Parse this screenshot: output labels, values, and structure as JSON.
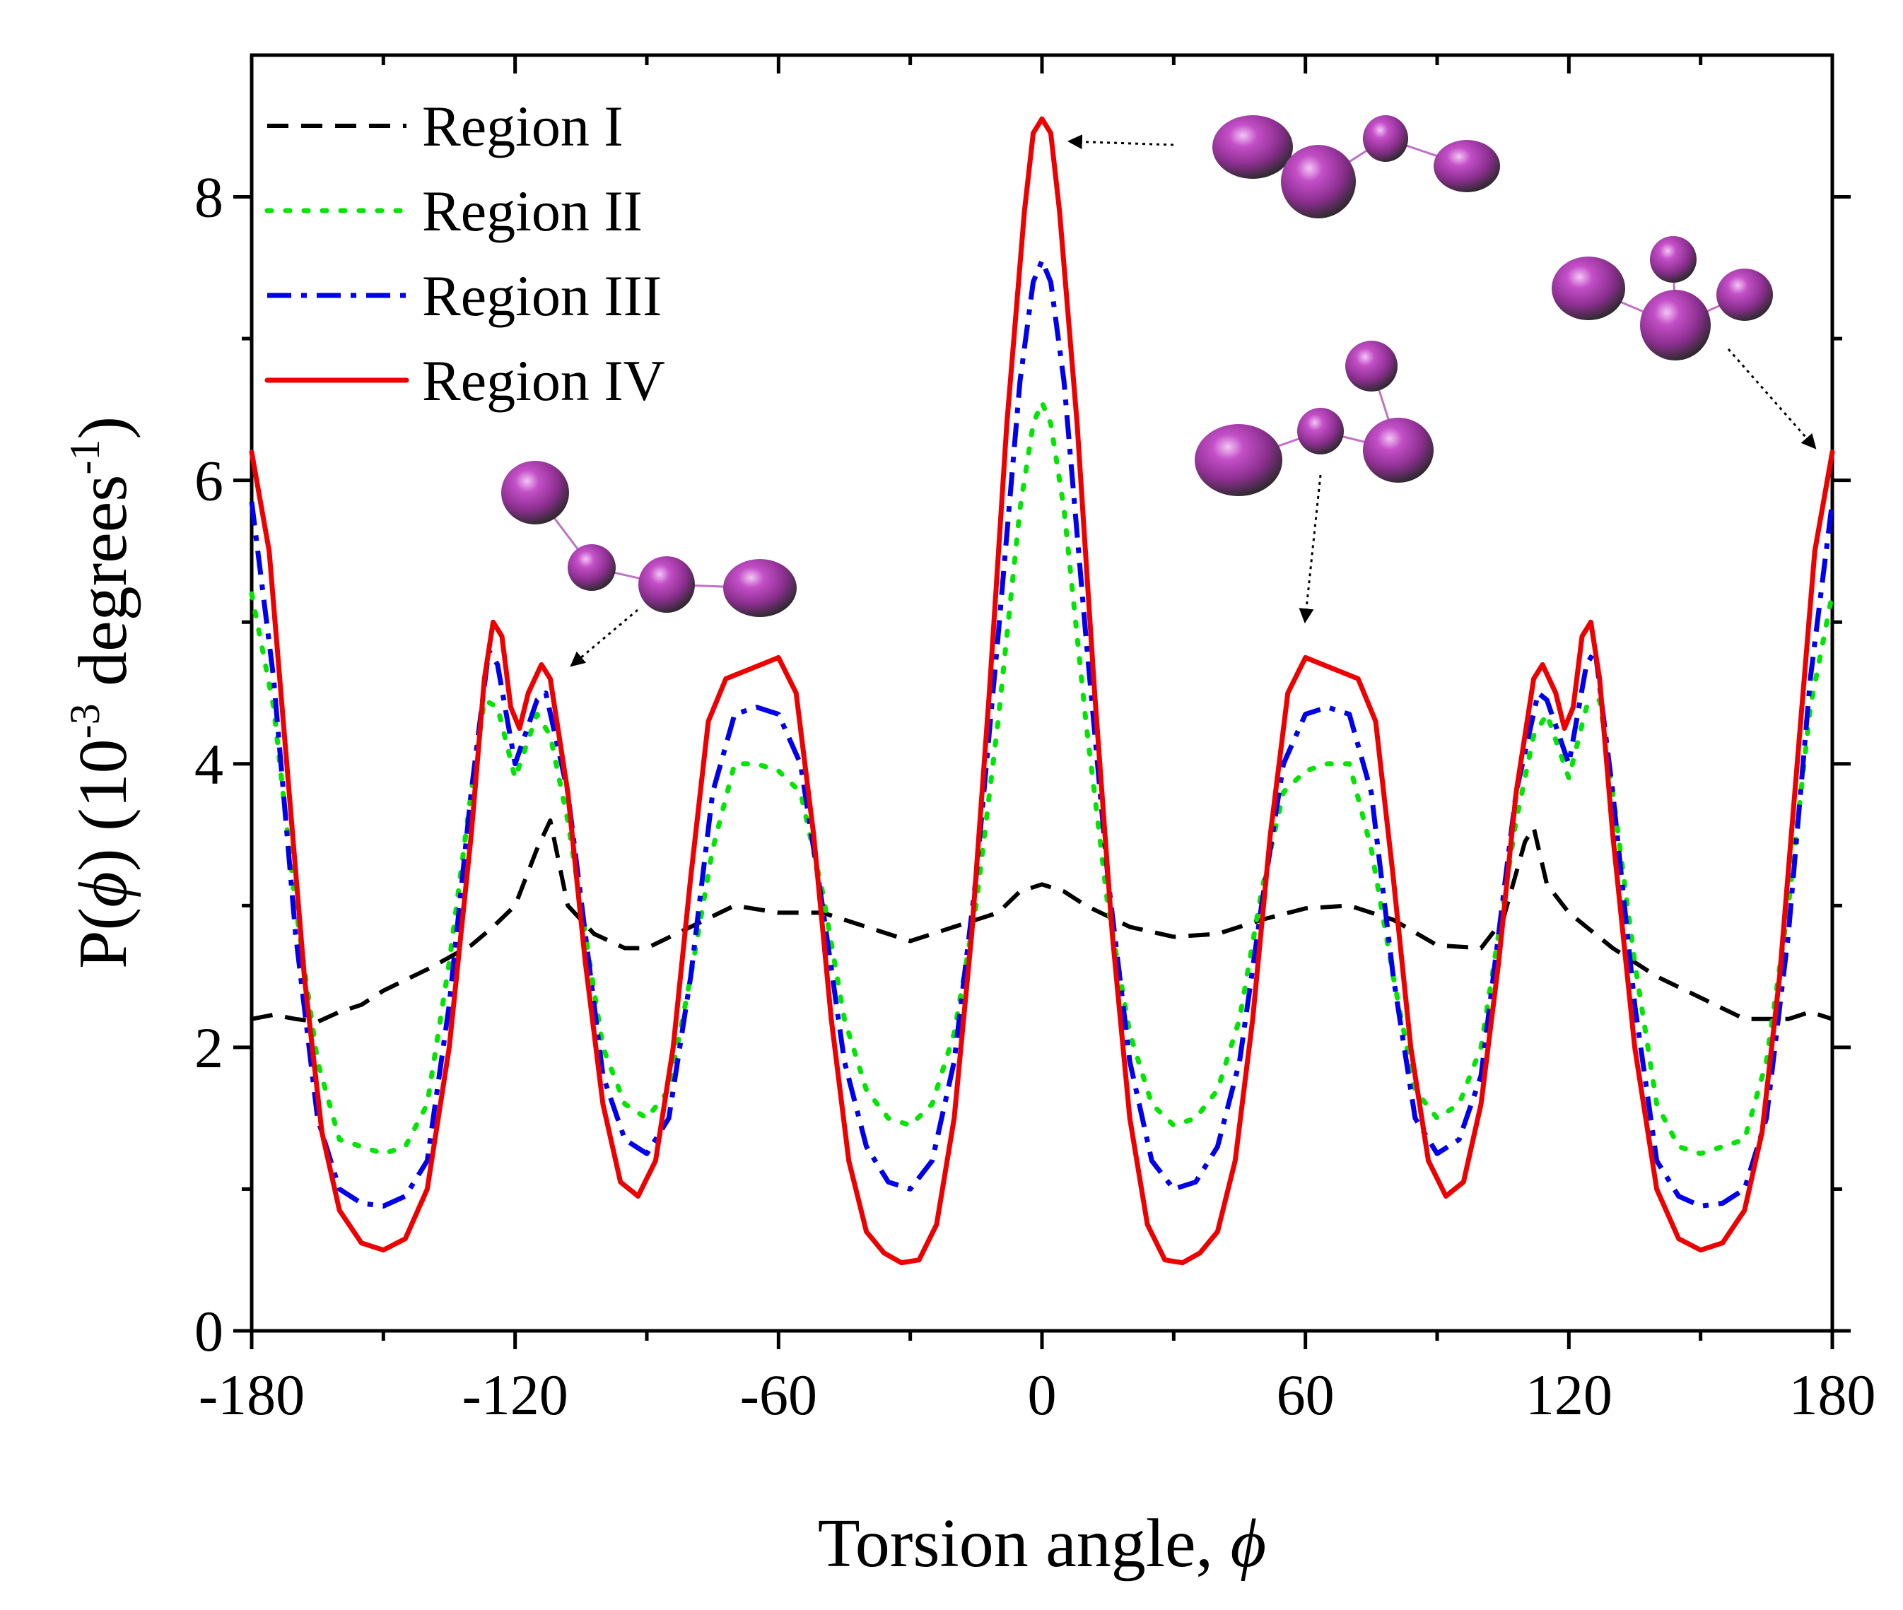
{
  "chart_data": {
    "type": "line",
    "xlabel": "Torsion angle, ",
    "xlabel_symbol": "ϕ",
    "ylabel_prefix": "P(",
    "ylabel_symbol": "ϕ",
    "ylabel_middle": ") (10",
    "ylabel_exp": "-3",
    "ylabel_units": " degrees",
    "ylabel_units_exp": "-1",
    "ylabel_close": ")",
    "xlim": [
      -180,
      180
    ],
    "ylim": [
      0,
      9
    ],
    "xticks": [
      -180,
      -120,
      -60,
      0,
      60,
      120,
      180
    ],
    "xtick_labels": [
      "-180",
      "-120",
      "-60",
      "0",
      "60",
      "120",
      "180"
    ],
    "yticks": [
      0,
      2,
      4,
      6,
      8
    ],
    "ytick_labels": [
      "0",
      "2",
      "4",
      "6",
      "8"
    ],
    "legend_position": "top-left",
    "series": [
      {
        "name": "Region I",
        "color": "#000000",
        "style": "dashed",
        "points": [
          [
            -180,
            2.2
          ],
          [
            -175,
            2.23
          ],
          [
            -170,
            2.2
          ],
          [
            -165,
            2.18
          ],
          [
            -160,
            2.25
          ],
          [
            -155,
            2.3
          ],
          [
            -150,
            2.4
          ],
          [
            -140,
            2.55
          ],
          [
            -130,
            2.72
          ],
          [
            -125,
            2.85
          ],
          [
            -120,
            3.0
          ],
          [
            -115,
            3.4
          ],
          [
            -112,
            3.6
          ],
          [
            -108,
            3.0
          ],
          [
            -102,
            2.8
          ],
          [
            -95,
            2.7
          ],
          [
            -90,
            2.7
          ],
          [
            -80,
            2.85
          ],
          [
            -70,
            3.0
          ],
          [
            -60,
            2.95
          ],
          [
            -50,
            2.95
          ],
          [
            -40,
            2.85
          ],
          [
            -30,
            2.75
          ],
          [
            -20,
            2.85
          ],
          [
            -10,
            2.95
          ],
          [
            -5,
            3.1
          ],
          [
            0,
            3.15
          ],
          [
            5,
            3.1
          ],
          [
            10,
            3.0
          ],
          [
            20,
            2.85
          ],
          [
            30,
            2.78
          ],
          [
            40,
            2.8
          ],
          [
            50,
            2.9
          ],
          [
            60,
            2.98
          ],
          [
            70,
            3.0
          ],
          [
            80,
            2.9
          ],
          [
            90,
            2.72
          ],
          [
            100,
            2.7
          ],
          [
            105,
            2.9
          ],
          [
            110,
            3.45
          ],
          [
            112,
            3.55
          ],
          [
            115,
            3.15
          ],
          [
            120,
            2.95
          ],
          [
            130,
            2.7
          ],
          [
            140,
            2.5
          ],
          [
            150,
            2.35
          ],
          [
            160,
            2.2
          ],
          [
            170,
            2.2
          ],
          [
            175,
            2.25
          ],
          [
            180,
            2.2
          ]
        ]
      },
      {
        "name": "Region II",
        "color": "#00e600",
        "style": "dotted",
        "points": [
          [
            -180,
            5.2
          ],
          [
            -175,
            4.4
          ],
          [
            -170,
            3.0
          ],
          [
            -165,
            1.9
          ],
          [
            -160,
            1.35
          ],
          [
            -150,
            1.25
          ],
          [
            -145,
            1.3
          ],
          [
            -140,
            1.6
          ],
          [
            -135,
            2.6
          ],
          [
            -130,
            3.8
          ],
          [
            -127,
            4.45
          ],
          [
            -124,
            4.4
          ],
          [
            -120,
            3.9
          ],
          [
            -115,
            4.35
          ],
          [
            -112,
            4.2
          ],
          [
            -108,
            3.6
          ],
          [
            -104,
            2.8
          ],
          [
            -100,
            2.0
          ],
          [
            -95,
            1.6
          ],
          [
            -90,
            1.5
          ],
          [
            -85,
            1.7
          ],
          [
            -80,
            2.5
          ],
          [
            -75,
            3.4
          ],
          [
            -70,
            4.0
          ],
          [
            -65,
            4.0
          ],
          [
            -60,
            3.95
          ],
          [
            -55,
            3.8
          ],
          [
            -50,
            3.1
          ],
          [
            -45,
            2.2
          ],
          [
            -40,
            1.7
          ],
          [
            -35,
            1.5
          ],
          [
            -30,
            1.45
          ],
          [
            -25,
            1.6
          ],
          [
            -20,
            2.1
          ],
          [
            -15,
            3.0
          ],
          [
            -10,
            4.3
          ],
          [
            -5,
            5.8
          ],
          [
            -2,
            6.4
          ],
          [
            0,
            6.55
          ],
          [
            2,
            6.4
          ],
          [
            5,
            5.8
          ],
          [
            10,
            4.3
          ],
          [
            15,
            3.0
          ],
          [
            20,
            2.1
          ],
          [
            25,
            1.6
          ],
          [
            30,
            1.45
          ],
          [
            35,
            1.5
          ],
          [
            40,
            1.7
          ],
          [
            45,
            2.2
          ],
          [
            50,
            3.1
          ],
          [
            55,
            3.8
          ],
          [
            60,
            3.95
          ],
          [
            65,
            4.0
          ],
          [
            70,
            4.0
          ],
          [
            75,
            3.4
          ],
          [
            80,
            2.5
          ],
          [
            85,
            1.7
          ],
          [
            90,
            1.5
          ],
          [
            95,
            1.6
          ],
          [
            100,
            2.0
          ],
          [
            104,
            2.8
          ],
          [
            108,
            3.6
          ],
          [
            112,
            4.2
          ],
          [
            115,
            4.35
          ],
          [
            120,
            3.9
          ],
          [
            124,
            4.4
          ],
          [
            127,
            4.45
          ],
          [
            130,
            3.8
          ],
          [
            135,
            2.6
          ],
          [
            140,
            1.6
          ],
          [
            145,
            1.3
          ],
          [
            150,
            1.25
          ],
          [
            160,
            1.35
          ],
          [
            165,
            1.9
          ],
          [
            170,
            3.0
          ],
          [
            175,
            4.4
          ],
          [
            180,
            5.2
          ]
        ]
      },
      {
        "name": "Region III",
        "color": "#0000ee",
        "style": "dashdot",
        "points": [
          [
            -180,
            5.85
          ],
          [
            -175,
            4.6
          ],
          [
            -170,
            2.8
          ],
          [
            -165,
            1.5
          ],
          [
            -160,
            1.0
          ],
          [
            -155,
            0.9
          ],
          [
            -150,
            0.88
          ],
          [
            -145,
            0.95
          ],
          [
            -140,
            1.2
          ],
          [
            -135,
            2.3
          ],
          [
            -130,
            3.8
          ],
          [
            -126,
            4.8
          ],
          [
            -124,
            4.7
          ],
          [
            -120,
            4.0
          ],
          [
            -115,
            4.45
          ],
          [
            -113,
            4.5
          ],
          [
            -108,
            3.8
          ],
          [
            -104,
            2.8
          ],
          [
            -100,
            1.8
          ],
          [
            -95,
            1.35
          ],
          [
            -90,
            1.25
          ],
          [
            -85,
            1.5
          ],
          [
            -80,
            2.5
          ],
          [
            -75,
            3.8
          ],
          [
            -70,
            4.35
          ],
          [
            -65,
            4.4
          ],
          [
            -60,
            4.35
          ],
          [
            -55,
            4.0
          ],
          [
            -50,
            3.0
          ],
          [
            -45,
            1.9
          ],
          [
            -40,
            1.3
          ],
          [
            -35,
            1.05
          ],
          [
            -30,
            1.0
          ],
          [
            -25,
            1.2
          ],
          [
            -20,
            1.9
          ],
          [
            -15,
            3.2
          ],
          [
            -10,
            4.9
          ],
          [
            -5,
            6.7
          ],
          [
            -2,
            7.4
          ],
          [
            0,
            7.55
          ],
          [
            2,
            7.4
          ],
          [
            5,
            6.7
          ],
          [
            10,
            4.9
          ],
          [
            15,
            3.2
          ],
          [
            20,
            1.9
          ],
          [
            25,
            1.2
          ],
          [
            30,
            1.0
          ],
          [
            35,
            1.05
          ],
          [
            40,
            1.3
          ],
          [
            45,
            1.9
          ],
          [
            50,
            3.0
          ],
          [
            55,
            4.0
          ],
          [
            60,
            4.35
          ],
          [
            65,
            4.4
          ],
          [
            70,
            4.35
          ],
          [
            75,
            3.8
          ],
          [
            80,
            2.5
          ],
          [
            85,
            1.5
          ],
          [
            90,
            1.25
          ],
          [
            95,
            1.35
          ],
          [
            100,
            1.8
          ],
          [
            104,
            2.8
          ],
          [
            108,
            3.8
          ],
          [
            113,
            4.5
          ],
          [
            115,
            4.45
          ],
          [
            120,
            4.0
          ],
          [
            124,
            4.7
          ],
          [
            126,
            4.8
          ],
          [
            130,
            3.8
          ],
          [
            135,
            2.3
          ],
          [
            140,
            1.2
          ],
          [
            145,
            0.95
          ],
          [
            150,
            0.88
          ],
          [
            155,
            0.9
          ],
          [
            160,
            1.0
          ],
          [
            165,
            1.5
          ],
          [
            170,
            2.8
          ],
          [
            175,
            4.6
          ],
          [
            180,
            5.85
          ]
        ]
      },
      {
        "name": "Region IV",
        "color": "#ee0000",
        "style": "solid",
        "points": [
          [
            -180,
            6.2
          ],
          [
            -176,
            5.5
          ],
          [
            -172,
            4.0
          ],
          [
            -168,
            2.5
          ],
          [
            -164,
            1.4
          ],
          [
            -160,
            0.85
          ],
          [
            -155,
            0.62
          ],
          [
            -150,
            0.57
          ],
          [
            -145,
            0.65
          ],
          [
            -140,
            1.0
          ],
          [
            -135,
            2.0
          ],
          [
            -130,
            3.5
          ],
          [
            -127,
            4.6
          ],
          [
            -125,
            5.0
          ],
          [
            -123,
            4.9
          ],
          [
            -121,
            4.4
          ],
          [
            -119,
            4.25
          ],
          [
            -117,
            4.5
          ],
          [
            -114,
            4.7
          ],
          [
            -112,
            4.6
          ],
          [
            -108,
            3.8
          ],
          [
            -104,
            2.6
          ],
          [
            -100,
            1.6
          ],
          [
            -96,
            1.05
          ],
          [
            -92,
            0.95
          ],
          [
            -88,
            1.2
          ],
          [
            -84,
            2.0
          ],
          [
            -80,
            3.2
          ],
          [
            -76,
            4.3
          ],
          [
            -72,
            4.6
          ],
          [
            -68,
            4.65
          ],
          [
            -64,
            4.7
          ],
          [
            -60,
            4.75
          ],
          [
            -56,
            4.5
          ],
          [
            -52,
            3.5
          ],
          [
            -48,
            2.2
          ],
          [
            -44,
            1.2
          ],
          [
            -40,
            0.7
          ],
          [
            -36,
            0.55
          ],
          [
            -32,
            0.48
          ],
          [
            -28,
            0.5
          ],
          [
            -24,
            0.75
          ],
          [
            -20,
            1.5
          ],
          [
            -16,
            2.8
          ],
          [
            -12,
            4.5
          ],
          [
            -8,
            6.4
          ],
          [
            -4,
            7.9
          ],
          [
            -2,
            8.45
          ],
          [
            0,
            8.55
          ],
          [
            2,
            8.45
          ],
          [
            4,
            7.9
          ],
          [
            8,
            6.4
          ],
          [
            12,
            4.5
          ],
          [
            16,
            2.8
          ],
          [
            20,
            1.5
          ],
          [
            24,
            0.75
          ],
          [
            28,
            0.5
          ],
          [
            32,
            0.48
          ],
          [
            36,
            0.55
          ],
          [
            40,
            0.7
          ],
          [
            44,
            1.2
          ],
          [
            48,
            2.2
          ],
          [
            52,
            3.5
          ],
          [
            56,
            4.5
          ],
          [
            60,
            4.75
          ],
          [
            64,
            4.7
          ],
          [
            68,
            4.65
          ],
          [
            72,
            4.6
          ],
          [
            76,
            4.3
          ],
          [
            80,
            3.2
          ],
          [
            84,
            2.0
          ],
          [
            88,
            1.2
          ],
          [
            92,
            0.95
          ],
          [
            96,
            1.05
          ],
          [
            100,
            1.6
          ],
          [
            104,
            2.6
          ],
          [
            108,
            3.8
          ],
          [
            112,
            4.6
          ],
          [
            114,
            4.7
          ],
          [
            117,
            4.5
          ],
          [
            119,
            4.25
          ],
          [
            121,
            4.4
          ],
          [
            123,
            4.9
          ],
          [
            125,
            5.0
          ],
          [
            127,
            4.6
          ],
          [
            130,
            3.5
          ],
          [
            135,
            2.0
          ],
          [
            140,
            1.0
          ],
          [
            145,
            0.65
          ],
          [
            150,
            0.57
          ],
          [
            155,
            0.62
          ],
          [
            160,
            0.85
          ],
          [
            164,
            1.4
          ],
          [
            168,
            2.5
          ],
          [
            172,
            4.0
          ],
          [
            176,
            5.5
          ],
          [
            180,
            6.2
          ]
        ]
      }
    ],
    "annotations": [
      {
        "name": "molecule-peak-0",
        "target_x": 0,
        "target_y": 8.5
      },
      {
        "name": "molecule-peak-180",
        "target_x": 180,
        "target_y": 6.2
      },
      {
        "name": "molecule-peak-60",
        "target_x": 60,
        "target_y": 5.0
      },
      {
        "name": "molecule-peak-minus-115",
        "target_x": -113,
        "target_y": 4.7
      }
    ]
  }
}
